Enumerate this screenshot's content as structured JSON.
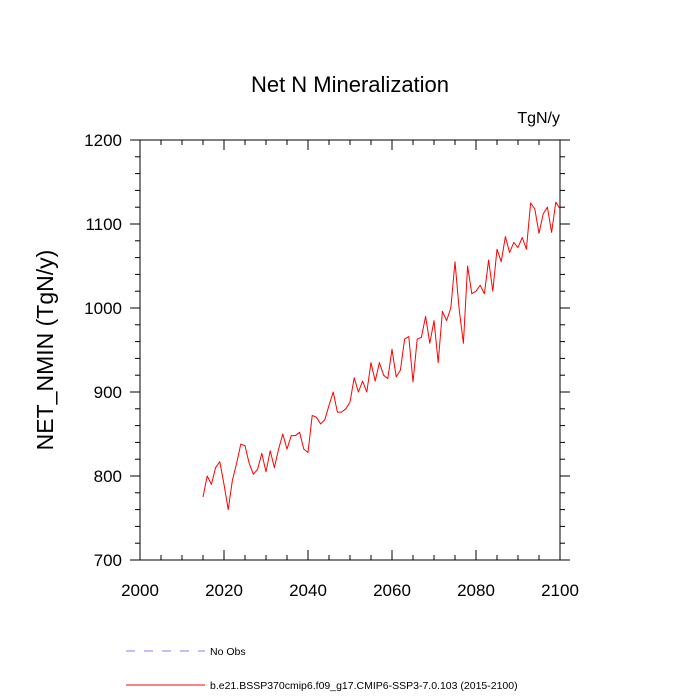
{
  "chart_data": {
    "type": "line",
    "title": "Net N Mineralization",
    "units": "TgN/y",
    "ylabel": "NET_NMIN  (TgN/y)",
    "xlabel": "",
    "xlim": [
      2000,
      2100
    ],
    "ylim": [
      700,
      1200
    ],
    "xticks": [
      2000,
      2020,
      2040,
      2060,
      2080,
      2100
    ],
    "yticks": [
      700,
      800,
      900,
      1000,
      1100,
      1200
    ],
    "grid": false,
    "series": [
      {
        "name": "b.e21.BSSP370cmip6.f09_g17.CMIP6-SSP3-7.0.103 (2015-2100)",
        "color": "#ff0000",
        "x": [
          2015,
          2016,
          2017,
          2018,
          2019,
          2020,
          2021,
          2022,
          2023,
          2024,
          2025,
          2026,
          2027,
          2028,
          2029,
          2030,
          2031,
          2032,
          2033,
          2034,
          2035,
          2036,
          2037,
          2038,
          2039,
          2040,
          2041,
          2042,
          2043,
          2044,
          2045,
          2046,
          2047,
          2048,
          2049,
          2050,
          2051,
          2052,
          2053,
          2054,
          2055,
          2056,
          2057,
          2058,
          2059,
          2060,
          2061,
          2062,
          2063,
          2064,
          2065,
          2066,
          2067,
          2068,
          2069,
          2070,
          2071,
          2072,
          2073,
          2074,
          2075,
          2076,
          2077,
          2078,
          2079,
          2080,
          2081,
          2082,
          2083,
          2084,
          2085,
          2086,
          2087,
          2088,
          2089,
          2090,
          2091,
          2092,
          2093,
          2094,
          2095,
          2096,
          2097,
          2098,
          2099,
          2100
        ],
        "y": [
          775,
          800,
          790,
          810,
          817,
          790,
          760,
          795,
          815,
          838,
          836,
          815,
          802,
          808,
          827,
          805,
          830,
          810,
          832,
          850,
          832,
          848,
          848,
          852,
          832,
          828,
          872,
          870,
          862,
          867,
          884,
          900,
          876,
          876,
          880,
          888,
          917,
          900,
          913,
          900,
          935,
          913,
          935,
          920,
          916,
          951,
          918,
          926,
          963,
          966,
          912,
          963,
          965,
          990,
          958,
          985,
          935,
          996,
          985,
          1000,
          1055,
          998,
          958,
          1050,
          1017,
          1020,
          1027,
          1017,
          1057,
          1020,
          1070,
          1055,
          1085,
          1066,
          1078,
          1072,
          1084,
          1070,
          1125,
          1118,
          1089,
          1112,
          1120,
          1090,
          1126,
          1118
        ]
      }
    ],
    "legend": {
      "placement": "bottom",
      "entries": [
        {
          "label": "No Obs",
          "color": "#8080ff",
          "style": "dashed"
        },
        {
          "label": "b.e21.BSSP370cmip6.f09_g17.CMIP6-SSP3-7.0.103 (2015-2100)",
          "color": "#ff0000",
          "style": "solid"
        }
      ]
    }
  }
}
